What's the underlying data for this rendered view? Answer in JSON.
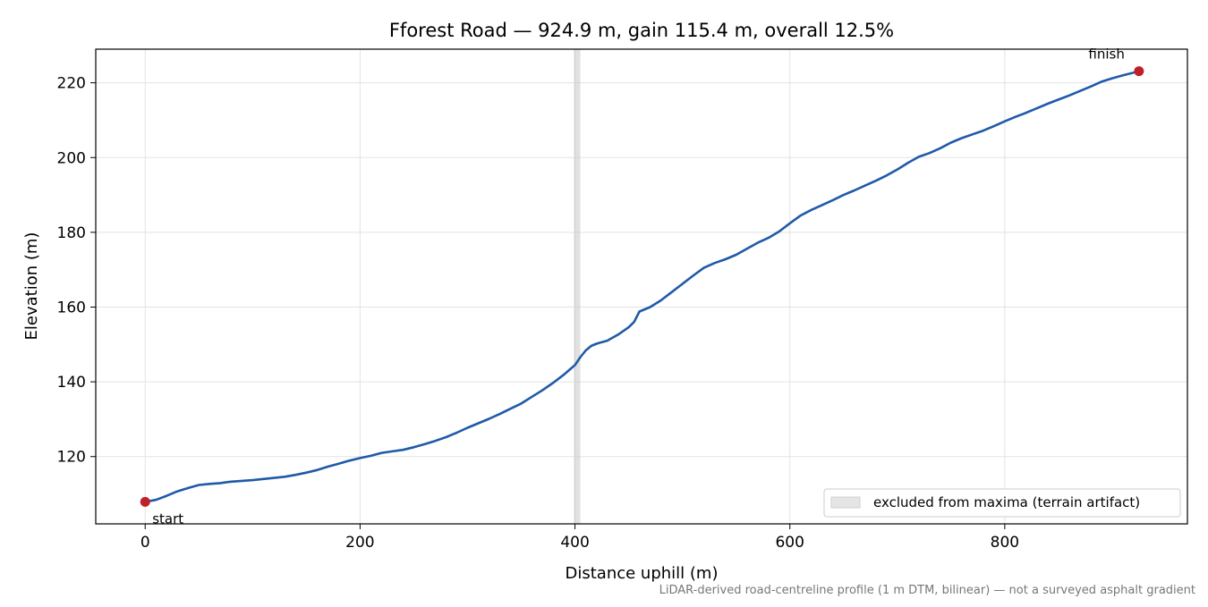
{
  "chart_data": {
    "type": "line",
    "title": "Fforest Road — 924.9 m, gain 115.4 m, overall 12.5%",
    "xlabel": "Distance uphill (m)",
    "ylabel": "Elevation (m)",
    "xlim": [
      -46,
      970
    ],
    "ylim": [
      102,
      229
    ],
    "xticks": [
      0,
      200,
      400,
      600,
      800
    ],
    "yticks": [
      120,
      140,
      160,
      180,
      200,
      220
    ],
    "grid": true,
    "legend": {
      "position": "lower right",
      "label": "excluded from maxima (terrain artifact)"
    },
    "excluded_band": {
      "x_start": 399,
      "x_end": 405,
      "color": "#c8c8c8"
    },
    "series": [
      {
        "color": "#1f5aa8",
        "points": [
          [
            0,
            107.9
          ],
          [
            10,
            108.4
          ],
          [
            20,
            109.5
          ],
          [
            30,
            110.7
          ],
          [
            40,
            111.6
          ],
          [
            50,
            112.4
          ],
          [
            60,
            112.7
          ],
          [
            70,
            112.9
          ],
          [
            80,
            113.3
          ],
          [
            90,
            113.5
          ],
          [
            100,
            113.7
          ],
          [
            110,
            114.0
          ],
          [
            120,
            114.3
          ],
          [
            130,
            114.6
          ],
          [
            140,
            115.1
          ],
          [
            150,
            115.7
          ],
          [
            160,
            116.4
          ],
          [
            170,
            117.3
          ],
          [
            180,
            118.1
          ],
          [
            190,
            118.9
          ],
          [
            200,
            119.6
          ],
          [
            210,
            120.2
          ],
          [
            220,
            121.0
          ],
          [
            230,
            121.4
          ],
          [
            240,
            121.8
          ],
          [
            250,
            122.5
          ],
          [
            260,
            123.3
          ],
          [
            270,
            124.2
          ],
          [
            280,
            125.2
          ],
          [
            290,
            126.4
          ],
          [
            300,
            127.7
          ],
          [
            310,
            128.9
          ],
          [
            320,
            130.1
          ],
          [
            330,
            131.4
          ],
          [
            340,
            132.8
          ],
          [
            350,
            134.2
          ],
          [
            360,
            136.0
          ],
          [
            370,
            137.8
          ],
          [
            380,
            139.8
          ],
          [
            390,
            142.0
          ],
          [
            400,
            144.5
          ],
          [
            405,
            146.6
          ],
          [
            410,
            148.4
          ],
          [
            415,
            149.6
          ],
          [
            420,
            150.2
          ],
          [
            425,
            150.6
          ],
          [
            430,
            151.0
          ],
          [
            440,
            152.6
          ],
          [
            450,
            154.6
          ],
          [
            455,
            156.0
          ],
          [
            460,
            158.8
          ],
          [
            465,
            159.4
          ],
          [
            470,
            160.0
          ],
          [
            480,
            161.8
          ],
          [
            490,
            164.0
          ],
          [
            500,
            166.2
          ],
          [
            510,
            168.4
          ],
          [
            520,
            170.5
          ],
          [
            530,
            171.8
          ],
          [
            540,
            172.8
          ],
          [
            550,
            174.0
          ],
          [
            560,
            175.6
          ],
          [
            570,
            177.2
          ],
          [
            580,
            178.5
          ],
          [
            590,
            180.2
          ],
          [
            600,
            182.4
          ],
          [
            610,
            184.5
          ],
          [
            620,
            186.0
          ],
          [
            630,
            187.3
          ],
          [
            640,
            188.6
          ],
          [
            650,
            190.0
          ],
          [
            660,
            191.2
          ],
          [
            670,
            192.5
          ],
          [
            680,
            193.8
          ],
          [
            690,
            195.2
          ],
          [
            700,
            196.8
          ],
          [
            710,
            198.6
          ],
          [
            720,
            200.2
          ],
          [
            730,
            201.2
          ],
          [
            740,
            202.5
          ],
          [
            750,
            204.0
          ],
          [
            760,
            205.2
          ],
          [
            770,
            206.2
          ],
          [
            780,
            207.2
          ],
          [
            790,
            208.4
          ],
          [
            800,
            209.7
          ],
          [
            810,
            210.9
          ],
          [
            820,
            212.0
          ],
          [
            830,
            213.2
          ],
          [
            840,
            214.4
          ],
          [
            850,
            215.5
          ],
          [
            860,
            216.6
          ],
          [
            870,
            217.8
          ],
          [
            880,
            219.0
          ],
          [
            890,
            220.3
          ],
          [
            900,
            221.2
          ],
          [
            910,
            222.0
          ],
          [
            924.9,
            223.1
          ]
        ]
      }
    ],
    "markers": [
      {
        "label": "start",
        "x": 0,
        "y": 107.9,
        "color": "#c0202a"
      },
      {
        "label": "finish",
        "x": 924.9,
        "y": 223.1,
        "color": "#c0202a"
      }
    ],
    "footnote": "LiDAR-derived road-centreline profile (1 m DTM, bilinear) — not a surveyed asphalt gradient"
  }
}
